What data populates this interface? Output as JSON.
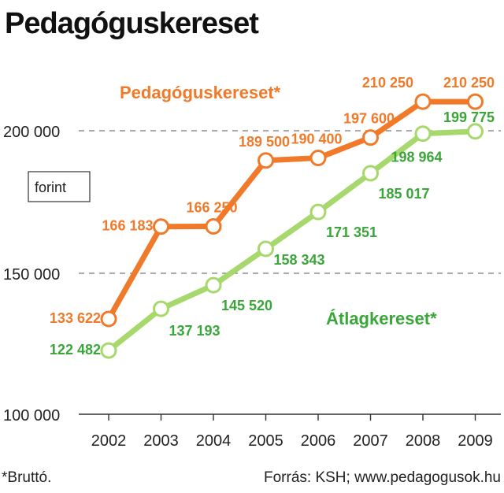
{
  "title": "Pedagóguskereset",
  "unit": "forint",
  "footnote": "*Bruttó.",
  "source": "Forrás: KSH; www.pedagogusok.hu",
  "colors": {
    "teacher": "#f07a2a",
    "average": "#a6d86b",
    "average_text": "#3aa63a",
    "grid": "#777777",
    "axis": "#333333"
  },
  "chart_data": {
    "type": "line",
    "title": "Pedagóguskereset",
    "ylabel": "forint",
    "xlabel": "",
    "categories": [
      "2002",
      "2003",
      "2004",
      "2005",
      "2006",
      "2007",
      "2008",
      "2009"
    ],
    "y_ticks": [
      {
        "value": 100000,
        "label": "100 000"
      },
      {
        "value": 150000,
        "label": "150 000"
      },
      {
        "value": 200000,
        "label": "200 000"
      }
    ],
    "ylim": [
      100000,
      215000
    ],
    "grid": "dashed horizontal at 150 000 and 200 000",
    "series": [
      {
        "name": "Pedagóguskereset*",
        "values": [
          133622,
          166183,
          166250,
          189500,
          190400,
          197600,
          210250,
          210250
        ],
        "labels": [
          "133 622",
          "166 183",
          "166 250",
          "189 500",
          "190 400",
          "197 600",
          "210 250",
          "210 250"
        ]
      },
      {
        "name": "Átlagkereset*",
        "values": [
          122482,
          137193,
          145520,
          158343,
          171351,
          185017,
          198964,
          199775
        ],
        "labels": [
          "122 482",
          "137 193",
          "145 520",
          "158 343",
          "171 351",
          "185 017",
          "198 964",
          "199 775"
        ]
      }
    ]
  }
}
